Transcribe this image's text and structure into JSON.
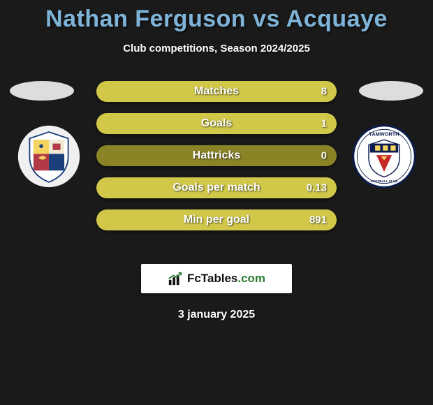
{
  "title": {
    "text": "Nathan Ferguson vs Acquaye",
    "color": "#7fb4d9",
    "fontsize": 34
  },
  "subtitle": "Club competitions, Season 2024/2025",
  "date": "3 january 2025",
  "brand": {
    "name": "FcTables",
    "domain": ".com"
  },
  "bar_style": {
    "track_color": "#8b8426",
    "fill_color": "#d1c84a",
    "label_color": "#ffffff"
  },
  "stats": [
    {
      "label": "Matches",
      "value": "8",
      "fill_pct": 100
    },
    {
      "label": "Goals",
      "value": "1",
      "fill_pct": 100
    },
    {
      "label": "Hattricks",
      "value": "0",
      "fill_pct": 0
    },
    {
      "label": "Goals per match",
      "value": "0.13",
      "fill_pct": 100
    },
    {
      "label": "Min per goal",
      "value": "891",
      "fill_pct": 100
    }
  ],
  "crests": {
    "left": {
      "name": "wealdstone-crest"
    },
    "right": {
      "name": "tamworth-crest",
      "label": "TAMWORTH",
      "sub": "FOOTBALL CLUB"
    }
  }
}
